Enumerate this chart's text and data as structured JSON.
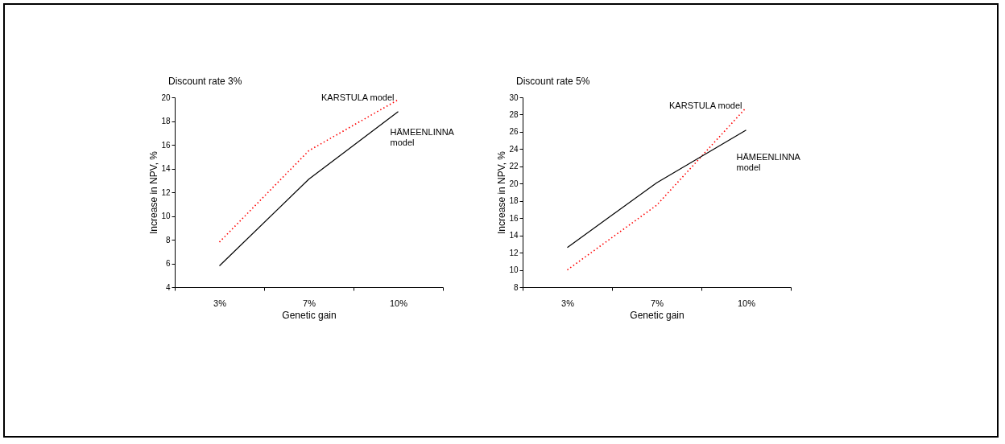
{
  "chart_data": [
    {
      "type": "line",
      "title": "Discount rate 3%",
      "xlabel": "Genetic gain",
      "ylabel": "Increase in NPV, %",
      "categories": [
        "3%",
        "7%",
        "10%"
      ],
      "ylim": [
        4,
        20
      ],
      "yticks": [
        4,
        6,
        8,
        10,
        12,
        14,
        16,
        18,
        20
      ],
      "grid": false,
      "legend": false,
      "marker": "none",
      "series": [
        {
          "name": "KARSTULA model",
          "color": "#ff0000",
          "line_style": "dotted",
          "values": [
            7.8,
            15.5,
            19.8
          ]
        },
        {
          "name": "HÄMEENLINNA model",
          "color": "#000000",
          "line_style": "solid",
          "values": [
            5.8,
            13.1,
            18.8
          ]
        }
      ]
    },
    {
      "type": "line",
      "title": "Discount rate 5%",
      "xlabel": "Genetic gain",
      "ylabel": "Increase in NPV, %",
      "categories": [
        "3%",
        "7%",
        "10%"
      ],
      "ylim": [
        8,
        30
      ],
      "yticks": [
        8,
        10,
        12,
        14,
        16,
        18,
        20,
        22,
        24,
        26,
        28,
        30
      ],
      "grid": false,
      "legend": false,
      "marker": "none",
      "series": [
        {
          "name": "KARSTULA model",
          "color": "#ff0000",
          "line_style": "dotted",
          "values": [
            10.0,
            17.5,
            28.8
          ]
        },
        {
          "name": "HÄMEENLINNA model",
          "color": "#000000",
          "line_style": "solid",
          "values": [
            12.6,
            20.1,
            26.2
          ]
        }
      ]
    }
  ]
}
